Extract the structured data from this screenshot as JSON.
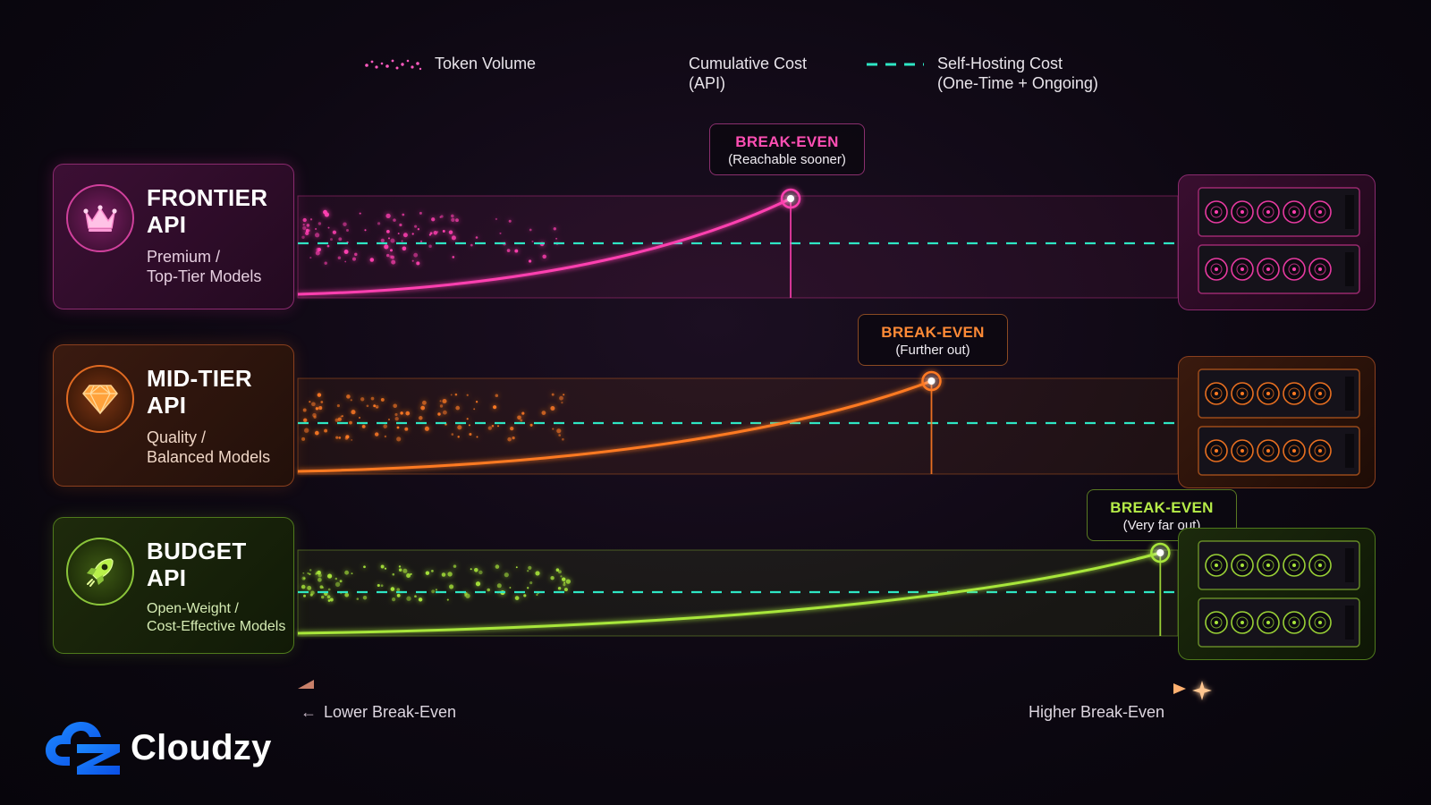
{
  "legend": {
    "token_volume": "Token Volume",
    "cumulative_cost": [
      "Cumulative Cost",
      "(API)"
    ],
    "self_hosting": [
      "Self-Hosting Cost",
      "(One-Time + Ongoing)"
    ]
  },
  "colors": {
    "frontier": "#ff3fb0",
    "mid": "#ff7a22",
    "budget": "#a8e63a",
    "self_hosting": "#2ee6c4",
    "background": "#0d0812"
  },
  "tiers": [
    {
      "id": "frontier",
      "name": [
        "FRONTIER",
        "API"
      ],
      "desc": [
        "Premium /",
        "Top-Tier Models"
      ],
      "icon": "crown-icon",
      "color": "#ff3fb0",
      "break_even_title": "BREAK-EVEN",
      "break_even_sub": "(Reachable sooner)",
      "break_even_position": 0.56
    },
    {
      "id": "mid",
      "name": [
        "MID-TIER",
        "API"
      ],
      "desc": [
        "Quality /",
        "Balanced Models"
      ],
      "icon": "diamond-icon",
      "color": "#ff7a22",
      "break_even_title": "BREAK-EVEN",
      "break_even_sub": "(Further out)",
      "break_even_position": 0.72
    },
    {
      "id": "budget",
      "name": [
        "BUDGET",
        "API"
      ],
      "desc": [
        "Open-Weight /",
        "Cost-Effective Models"
      ],
      "icon": "rocket-icon",
      "color": "#a8e63a",
      "break_even_title": "BREAK-EVEN",
      "break_even_sub": "(Very far out)",
      "break_even_position": 0.98
    }
  ],
  "axis": {
    "left_label": "Lower Break-Even",
    "right_label": "Higher Break-Even"
  },
  "brand": {
    "name": "Cloudzy",
    "logo_icon": "cloudzy-logo-icon"
  }
}
